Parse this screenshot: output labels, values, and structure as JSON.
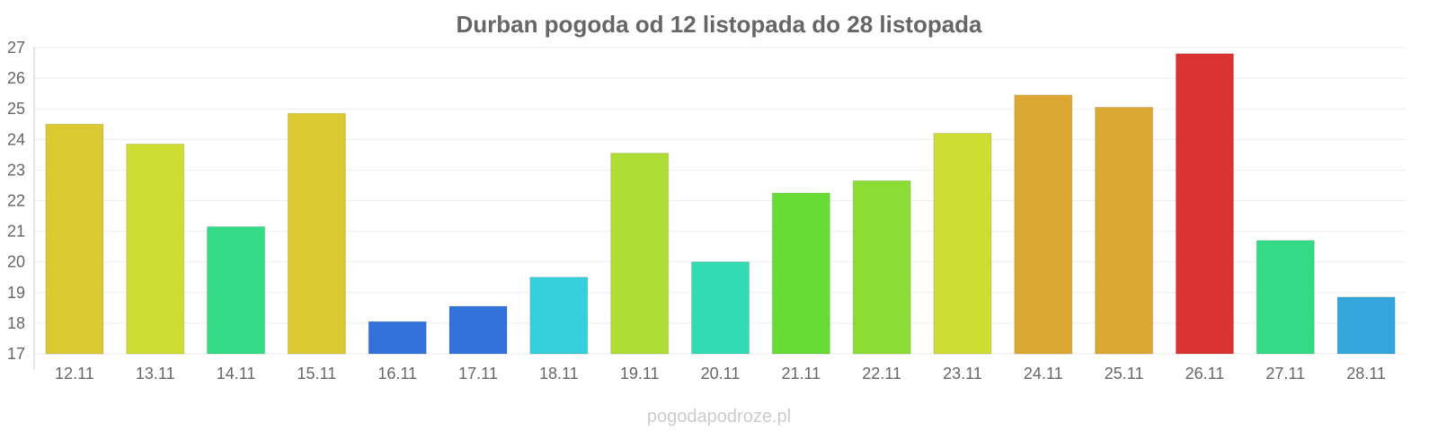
{
  "chart_data": {
    "type": "bar",
    "title": "Durban pogoda od 12 listopada do 28 listopada",
    "xlabel": "",
    "ylabel": "",
    "ylim": [
      17,
      27
    ],
    "yticks": [
      17,
      18,
      19,
      20,
      21,
      22,
      23,
      24,
      25,
      26,
      27
    ],
    "grid": true,
    "categories": [
      "12.11",
      "13.11",
      "14.11",
      "15.11",
      "16.11",
      "17.11",
      "18.11",
      "19.11",
      "20.11",
      "21.11",
      "22.11",
      "23.11",
      "24.11",
      "25.11",
      "26.11",
      "27.11",
      "28.11"
    ],
    "values": [
      24.5,
      23.85,
      21.15,
      24.85,
      18.05,
      18.55,
      19.5,
      23.55,
      20.0,
      22.25,
      22.65,
      24.2,
      25.45,
      25.05,
      26.8,
      20.7,
      18.85
    ],
    "colors": [
      "#dbc931",
      "#cedd32",
      "#33db86",
      "#dbc931",
      "#3273db",
      "#3273db",
      "#36cfdc",
      "#aedd33",
      "#33dbb5",
      "#67dd33",
      "#8bdd33",
      "#cedd32",
      "#dba932",
      "#dba932",
      "#db3332",
      "#33db86",
      "#35a6dc"
    ]
  },
  "watermark": "pogodapodroze.pl"
}
